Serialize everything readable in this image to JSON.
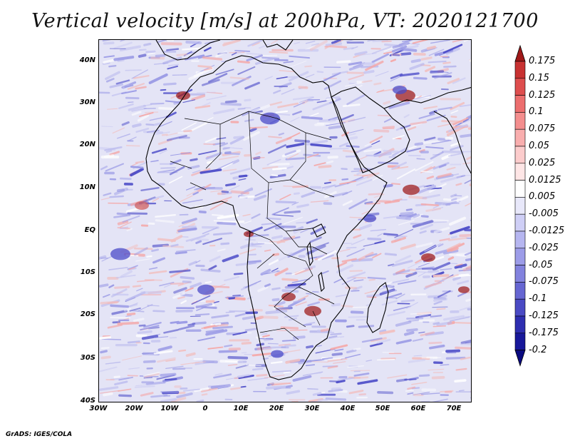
{
  "title": "Vertical velocity [m/s] at 200hPa, VT: 2020121700",
  "footer": "GrADS: IGES/COLA",
  "axes": {
    "lat_labels": [
      "40N",
      "30N",
      "20N",
      "10N",
      "EQ",
      "10S",
      "20S",
      "30S",
      "40S"
    ],
    "lon_labels": [
      "30W",
      "20W",
      "10W",
      "0",
      "10E",
      "20E",
      "30E",
      "40E",
      "50E",
      "60E",
      "70E"
    ]
  },
  "colorbar": {
    "labels": [
      "0.175",
      "0.15",
      "0.125",
      "0.1",
      "0.075",
      "0.05",
      "0.025",
      "0.0125",
      "0.005",
      "-0.005",
      "-0.0125",
      "-0.025",
      "-0.05",
      "-0.075",
      "-0.1",
      "-0.125",
      "-0.175",
      "-0.2"
    ],
    "colors": [
      "#a01818",
      "#c83232",
      "#de4e4e",
      "#ec6e6e",
      "#f48e8e",
      "#f9aeae",
      "#fccccc",
      "#fee6e6",
      "#ffffff",
      "#e8e8fa",
      "#cfcff6",
      "#b6b6f0",
      "#9c9ce8",
      "#8282de",
      "#6666d2",
      "#4a4ac4",
      "#2e2eb0",
      "#18189a",
      "#0a0a80"
    ]
  },
  "map_colors": {
    "background": "#e4e4f6",
    "blue_mid": "#9a9ae6",
    "blue_dark": "#4b4bc8",
    "red_light": "#f5a8a8",
    "red_dark": "#a02020",
    "border": "#000000"
  }
}
